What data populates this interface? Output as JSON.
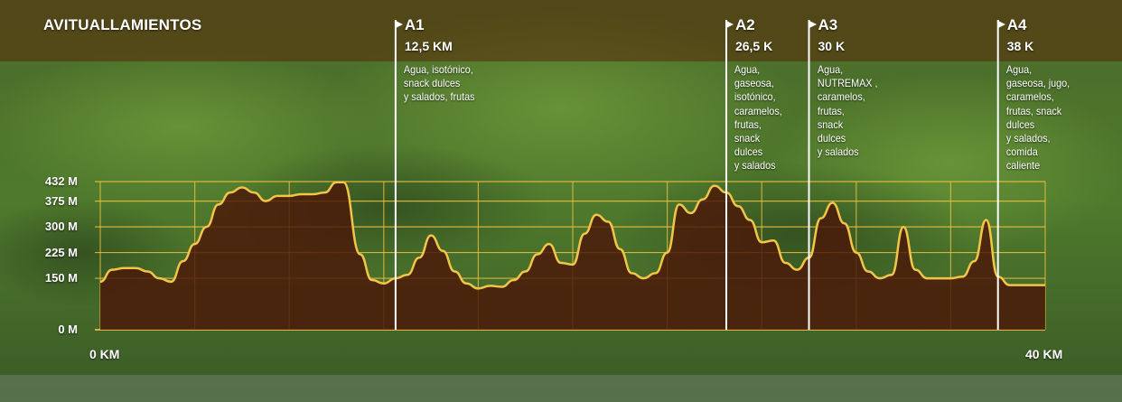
{
  "title": "AVITUALLAMIENTOS",
  "colors": {
    "grid": "#f0c040",
    "fill": "#4a1608",
    "line": "#f2c548",
    "marker": "#ffffff",
    "text": "#ffffff",
    "band": "#5a2a0a"
  },
  "stations": [
    {
      "id": "A1",
      "distance_label": "12,5 KM",
      "km": 12.5,
      "items": [
        "Agua, isotónico,",
        "snack dulces",
        "y salados, frutas"
      ]
    },
    {
      "id": "A2",
      "distance_label": "26,5 K",
      "km": 26.5,
      "items": [
        "Agua,",
        "gaseosa,",
        "isotónico,",
        "caramelos,",
        "frutas,",
        "snack",
        "dulces",
        "y salados"
      ]
    },
    {
      "id": "A3",
      "distance_label": "30 K",
      "km": 30,
      "items": [
        "Agua,",
        "NUTREMAX ,",
        "caramelos,",
        "frutas,",
        "snack",
        "dulces",
        "y salados"
      ]
    },
    {
      "id": "A4",
      "distance_label": "38 K",
      "km": 38,
      "items": [
        "Agua,",
        "gaseosa, jugo,",
        "caramelos,",
        "frutas, snack",
        "dulces",
        "y salados,",
        "comida",
        "caliente"
      ]
    }
  ],
  "chart_data": {
    "type": "area",
    "title": "AVITUALLAMIENTOS",
    "xlabel": "",
    "ylabel": "",
    "x_tick_labels": [
      "0 KM",
      "40 KM"
    ],
    "y_tick_labels": [
      "0 M",
      "150 M",
      "225 M",
      "300 M",
      "375 M",
      "432 M"
    ],
    "y_ticks": [
      0,
      150,
      225,
      300,
      375,
      432
    ],
    "xlim": [
      0,
      40
    ],
    "ylim": [
      0,
      432
    ],
    "grid": true,
    "series": [
      {
        "x": [
          0,
          0.5,
          1,
          1.5,
          2,
          2.5,
          3,
          3.5,
          4,
          4.5,
          5,
          5.5,
          6,
          6.5,
          7,
          7.5,
          8,
          8.5,
          9,
          9.5,
          10,
          10.3,
          11,
          11.5,
          12,
          12.5,
          13,
          13.5,
          14,
          14.5,
          15,
          15.5,
          16,
          16.5,
          17,
          17.5,
          18,
          18.5,
          19,
          19.5,
          20,
          20.5,
          21,
          21.5,
          22,
          22.5,
          23,
          23.5,
          24,
          24.5,
          25,
          25.5,
          26,
          26.5,
          27,
          27.5,
          28,
          28.5,
          29,
          29.5,
          30,
          30.5,
          31,
          31.5,
          32,
          32.5,
          33,
          33.5,
          34,
          34.5,
          35,
          35.5,
          36,
          36.5,
          37,
          37.5,
          38,
          38.5,
          39,
          39.5,
          40
        ],
        "values": [
          140,
          175,
          180,
          180,
          170,
          150,
          140,
          200,
          250,
          300,
          365,
          400,
          415,
          400,
          375,
          390,
          390,
          395,
          395,
          400,
          430,
          430,
          220,
          145,
          135,
          150,
          160,
          210,
          275,
          230,
          170,
          135,
          120,
          128,
          125,
          145,
          170,
          220,
          250,
          195,
          190,
          280,
          335,
          315,
          235,
          165,
          150,
          165,
          225,
          365,
          340,
          380,
          420,
          400,
          360,
          320,
          255,
          260,
          195,
          175,
          210,
          325,
          370,
          310,
          225,
          170,
          150,
          160,
          300,
          175,
          150,
          150,
          150,
          155,
          200,
          320,
          155,
          130,
          130,
          130,
          130
        ]
      }
    ]
  }
}
